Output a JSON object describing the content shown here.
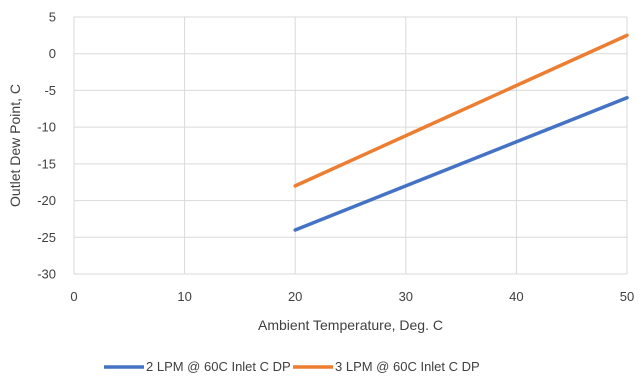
{
  "chart_data": {
    "type": "line",
    "title": "",
    "xlabel": "Ambient Temperature,  Deg. C",
    "ylabel": "Outlet Dew Point, C",
    "xlim": [
      0,
      50
    ],
    "ylim": [
      -30,
      5
    ],
    "x_ticks": [
      "0",
      "10",
      "20",
      "30",
      "40",
      "50"
    ],
    "y_ticks": [
      "5",
      "0",
      "-5",
      "-10",
      "-15",
      "-20",
      "-25",
      "-30"
    ],
    "grid": "vertical-and-horizontal",
    "legend_position": "bottom",
    "series": [
      {
        "name": "2 LPM @ 60C Inlet C DP",
        "color": "#4472c4",
        "x": [
          20,
          50
        ],
        "y": [
          -24,
          -6
        ]
      },
      {
        "name": "3 LPM @ 60C Inlet C DP",
        "color": "#ed7d31",
        "x": [
          20,
          50
        ],
        "y": [
          -18,
          2.5
        ]
      }
    ]
  }
}
